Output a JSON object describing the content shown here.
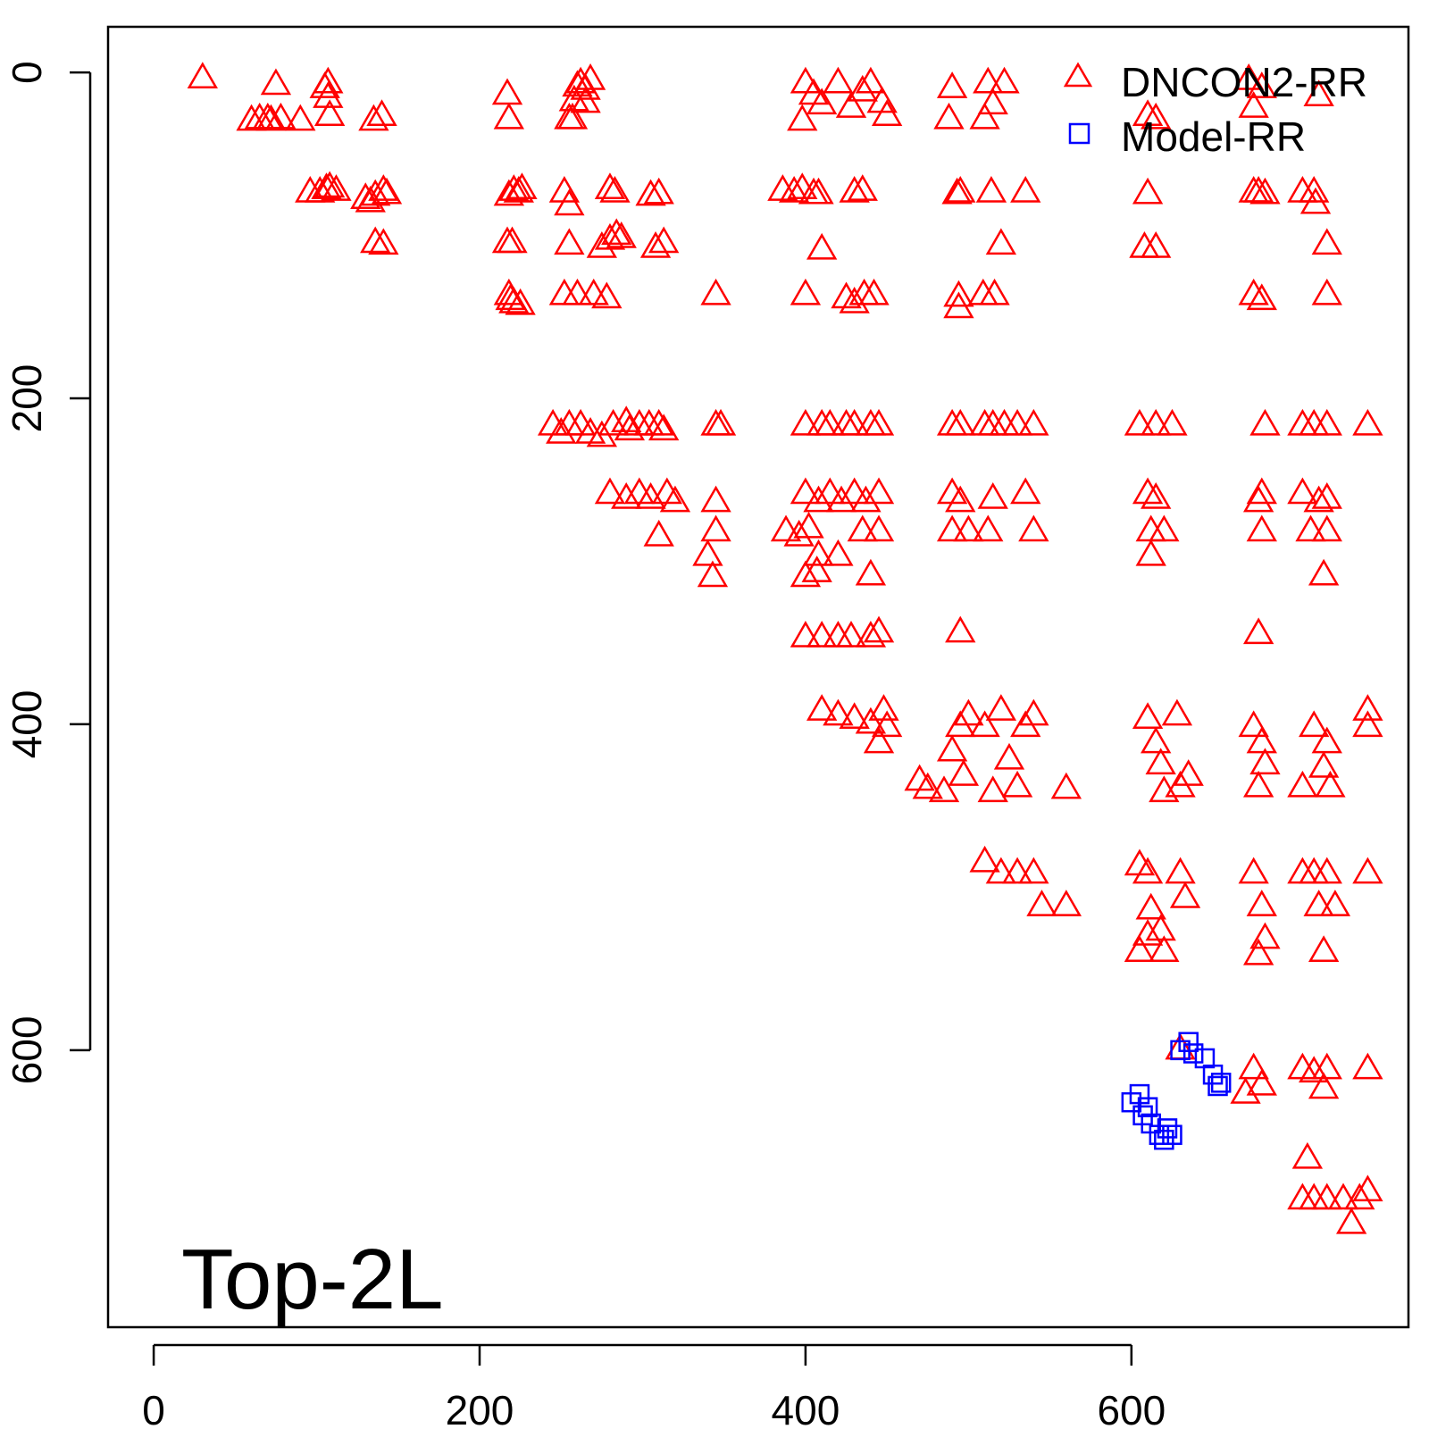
{
  "chart_data": {
    "type": "scatter",
    "title": "",
    "xlabel": "",
    "ylabel": "",
    "xlim": [
      -28,
      770
    ],
    "ylim": [
      -28,
      770
    ],
    "y_reversed": true,
    "x_ticks": [
      0,
      200,
      400,
      600
    ],
    "y_ticks": [
      0,
      200,
      400,
      600
    ],
    "annotation": "Top-2L",
    "legend": {
      "position": "top-right",
      "entries": [
        {
          "label": "DNCON2-RR",
          "marker": "triangle",
          "color": "#ff0000"
        },
        {
          "label": "Model-RR",
          "marker": "square",
          "color": "#0000ff"
        }
      ]
    },
    "series": [
      {
        "name": "DNCON2-RR",
        "marker": "triangle",
        "color": "#ff0000",
        "points": [
          [
            30,
            2
          ],
          [
            60,
            28
          ],
          [
            65,
            27
          ],
          [
            70,
            27
          ],
          [
            72,
            28
          ],
          [
            75,
            6
          ],
          [
            78,
            27
          ],
          [
            90,
            28
          ],
          [
            105,
            8
          ],
          [
            107,
            14
          ],
          [
            107,
            5
          ],
          [
            108,
            25
          ],
          [
            135,
            28
          ],
          [
            140,
            25
          ],
          [
            96,
            72
          ],
          [
            102,
            72
          ],
          [
            106,
            70
          ],
          [
            108,
            69
          ],
          [
            112,
            71
          ],
          [
            130,
            76
          ],
          [
            133,
            78
          ],
          [
            136,
            74
          ],
          [
            141,
            71
          ],
          [
            143,
            73
          ],
          [
            136,
            103
          ],
          [
            141,
            104
          ],
          [
            217,
            12
          ],
          [
            218,
            27
          ],
          [
            257,
            27
          ],
          [
            258,
            16
          ],
          [
            260,
            7
          ],
          [
            262,
            5
          ],
          [
            265,
            9
          ],
          [
            268,
            3
          ],
          [
            255,
            27
          ],
          [
            265,
            17
          ],
          [
            400,
            5
          ],
          [
            405,
            12
          ],
          [
            398,
            28
          ],
          [
            410,
            18
          ],
          [
            420,
            5
          ],
          [
            428,
            20
          ],
          [
            435,
            10
          ],
          [
            440,
            5
          ],
          [
            447,
            17
          ],
          [
            450,
            25
          ],
          [
            490,
            8
          ],
          [
            488,
            27
          ],
          [
            512,
            5
          ],
          [
            515,
            18
          ],
          [
            522,
            5
          ],
          [
            510,
            27
          ],
          [
            680,
            8
          ],
          [
            675,
            20
          ],
          [
            672,
            3
          ],
          [
            610,
            25
          ],
          [
            615,
            27
          ],
          [
            715,
            13
          ],
          [
            218,
            74
          ],
          [
            221,
            71
          ],
          [
            224,
            72
          ],
          [
            226,
            70
          ],
          [
            217,
            103
          ],
          [
            220,
            103
          ],
          [
            218,
            135
          ],
          [
            219,
            138
          ],
          [
            221,
            140
          ],
          [
            225,
            141
          ],
          [
            252,
            72
          ],
          [
            255,
            80
          ],
          [
            280,
            70
          ],
          [
            283,
            72
          ],
          [
            255,
            104
          ],
          [
            275,
            106
          ],
          [
            280,
            101
          ],
          [
            284,
            98
          ],
          [
            287,
            100
          ],
          [
            305,
            74
          ],
          [
            310,
            73
          ],
          [
            308,
            106
          ],
          [
            313,
            103
          ],
          [
            252,
            135
          ],
          [
            260,
            135
          ],
          [
            270,
            135
          ],
          [
            278,
            137
          ],
          [
            345,
            135
          ],
          [
            386,
            71
          ],
          [
            393,
            72
          ],
          [
            398,
            70
          ],
          [
            405,
            73
          ],
          [
            408,
            73
          ],
          [
            410,
            107
          ],
          [
            430,
            72
          ],
          [
            435,
            71
          ],
          [
            400,
            135
          ],
          [
            425,
            137
          ],
          [
            430,
            140
          ],
          [
            436,
            135
          ],
          [
            442,
            135
          ],
          [
            494,
            136
          ],
          [
            494,
            143
          ],
          [
            509,
            135
          ],
          [
            516,
            135
          ],
          [
            520,
            104
          ],
          [
            514,
            72
          ],
          [
            495,
            72
          ],
          [
            493,
            73
          ],
          [
            535,
            72
          ],
          [
            610,
            73
          ],
          [
            608,
            106
          ],
          [
            615,
            106
          ],
          [
            675,
            72
          ],
          [
            678,
            72
          ],
          [
            682,
            73
          ],
          [
            705,
            72
          ],
          [
            712,
            72
          ],
          [
            713,
            79
          ],
          [
            720,
            104
          ],
          [
            675,
            135
          ],
          [
            680,
            138
          ],
          [
            720,
            135
          ],
          [
            245,
            215
          ],
          [
            250,
            220
          ],
          [
            255,
            215
          ],
          [
            262,
            215
          ],
          [
            268,
            220
          ],
          [
            275,
            222
          ],
          [
            282,
            215
          ],
          [
            290,
            213
          ],
          [
            292,
            218
          ],
          [
            298,
            215
          ],
          [
            304,
            215
          ],
          [
            310,
            215
          ],
          [
            313,
            218
          ],
          [
            345,
            215
          ],
          [
            348,
            215
          ],
          [
            400,
            215
          ],
          [
            410,
            215
          ],
          [
            415,
            215
          ],
          [
            425,
            215
          ],
          [
            430,
            215
          ],
          [
            440,
            215
          ],
          [
            445,
            215
          ],
          [
            490,
            215
          ],
          [
            495,
            215
          ],
          [
            510,
            215
          ],
          [
            515,
            215
          ],
          [
            522,
            215
          ],
          [
            530,
            215
          ],
          [
            540,
            215
          ],
          [
            605,
            215
          ],
          [
            615,
            215
          ],
          [
            625,
            215
          ],
          [
            682,
            215
          ],
          [
            705,
            215
          ],
          [
            712,
            215
          ],
          [
            720,
            215
          ],
          [
            745,
            215
          ],
          [
            280,
            257
          ],
          [
            290,
            260
          ],
          [
            298,
            257
          ],
          [
            305,
            260
          ],
          [
            315,
            257
          ],
          [
            320,
            262
          ],
          [
            310,
            283
          ],
          [
            345,
            262
          ],
          [
            345,
            280
          ],
          [
            340,
            295
          ],
          [
            343,
            308
          ],
          [
            400,
            257
          ],
          [
            408,
            262
          ],
          [
            415,
            257
          ],
          [
            422,
            262
          ],
          [
            430,
            257
          ],
          [
            437,
            262
          ],
          [
            445,
            257
          ],
          [
            388,
            280
          ],
          [
            396,
            283
          ],
          [
            402,
            278
          ],
          [
            408,
            295
          ],
          [
            407,
            305
          ],
          [
            400,
            308
          ],
          [
            420,
            295
          ],
          [
            435,
            280
          ],
          [
            445,
            280
          ],
          [
            440,
            307
          ],
          [
            490,
            257
          ],
          [
            495,
            262
          ],
          [
            490,
            280
          ],
          [
            500,
            280
          ],
          [
            512,
            280
          ],
          [
            515,
            260
          ],
          [
            535,
            257
          ],
          [
            540,
            280
          ],
          [
            610,
            257
          ],
          [
            615,
            260
          ],
          [
            612,
            280
          ],
          [
            620,
            280
          ],
          [
            612,
            295
          ],
          [
            680,
            257
          ],
          [
            678,
            262
          ],
          [
            680,
            280
          ],
          [
            705,
            257
          ],
          [
            715,
            262
          ],
          [
            720,
            260
          ],
          [
            710,
            280
          ],
          [
            720,
            280
          ],
          [
            718,
            307
          ],
          [
            400,
            345
          ],
          [
            410,
            345
          ],
          [
            420,
            345
          ],
          [
            428,
            345
          ],
          [
            440,
            345
          ],
          [
            445,
            342
          ],
          [
            495,
            342
          ],
          [
            678,
            343
          ],
          [
            410,
            390
          ],
          [
            420,
            393
          ],
          [
            430,
            395
          ],
          [
            440,
            398
          ],
          [
            445,
            410
          ],
          [
            450,
            400
          ],
          [
            448,
            390
          ],
          [
            470,
            433
          ],
          [
            475,
            438
          ],
          [
            485,
            440
          ],
          [
            490,
            415
          ],
          [
            495,
            400
          ],
          [
            497,
            430
          ],
          [
            500,
            393
          ],
          [
            510,
            400
          ],
          [
            515,
            440
          ],
          [
            520,
            390
          ],
          [
            525,
            420
          ],
          [
            530,
            437
          ],
          [
            535,
            400
          ],
          [
            540,
            393
          ],
          [
            560,
            438
          ],
          [
            610,
            395
          ],
          [
            615,
            410
          ],
          [
            618,
            423
          ],
          [
            620,
            440
          ],
          [
            628,
            393
          ],
          [
            630,
            437
          ],
          [
            635,
            430
          ],
          [
            675,
            400
          ],
          [
            680,
            410
          ],
          [
            682,
            423
          ],
          [
            678,
            437
          ],
          [
            705,
            437
          ],
          [
            712,
            400
          ],
          [
            720,
            410
          ],
          [
            718,
            425
          ],
          [
            722,
            437
          ],
          [
            745,
            390
          ],
          [
            745,
            400
          ],
          [
            510,
            483
          ],
          [
            520,
            490
          ],
          [
            530,
            490
          ],
          [
            540,
            490
          ],
          [
            545,
            510
          ],
          [
            560,
            510
          ],
          [
            605,
            485
          ],
          [
            610,
            490
          ],
          [
            612,
            512
          ],
          [
            618,
            525
          ],
          [
            620,
            538
          ],
          [
            630,
            490
          ],
          [
            633,
            505
          ],
          [
            605,
            538
          ],
          [
            610,
            528
          ],
          [
            675,
            490
          ],
          [
            680,
            510
          ],
          [
            682,
            530
          ],
          [
            678,
            540
          ],
          [
            705,
            490
          ],
          [
            712,
            490
          ],
          [
            720,
            490
          ],
          [
            715,
            510
          ],
          [
            725,
            510
          ],
          [
            718,
            538
          ],
          [
            745,
            490
          ],
          [
            630,
            598
          ],
          [
            675,
            610
          ],
          [
            680,
            620
          ],
          [
            670,
            625
          ],
          [
            705,
            610
          ],
          [
            712,
            612
          ],
          [
            718,
            622
          ],
          [
            720,
            610
          ],
          [
            745,
            610
          ],
          [
            708,
            665
          ],
          [
            705,
            690
          ],
          [
            712,
            690
          ],
          [
            720,
            690
          ],
          [
            730,
            690
          ],
          [
            740,
            690
          ],
          [
            745,
            685
          ],
          [
            735,
            705
          ]
        ]
      },
      {
        "name": "Model-RR",
        "marker": "square",
        "color": "#0000ff",
        "points": [
          [
            630,
            600
          ],
          [
            635,
            595
          ],
          [
            638,
            602
          ],
          [
            645,
            605
          ],
          [
            650,
            615
          ],
          [
            653,
            622
          ],
          [
            655,
            620
          ],
          [
            600,
            632
          ],
          [
            605,
            627
          ],
          [
            607,
            640
          ],
          [
            610,
            635
          ],
          [
            612,
            645
          ],
          [
            617,
            652
          ],
          [
            620,
            655
          ],
          [
            622,
            648
          ],
          [
            625,
            652
          ]
        ]
      }
    ]
  }
}
